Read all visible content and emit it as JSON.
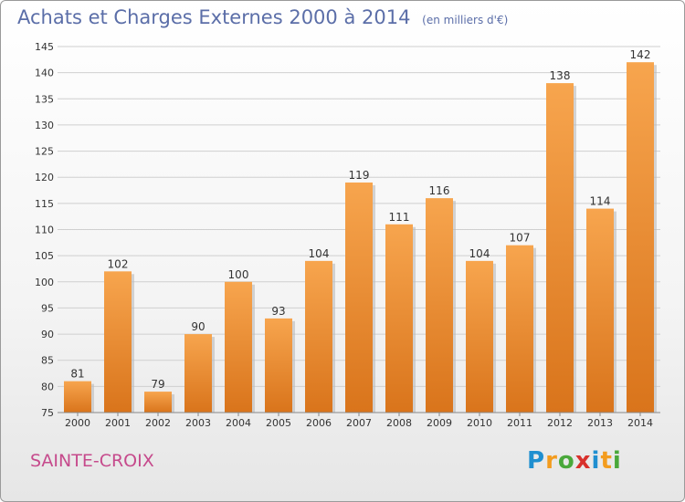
{
  "title": "Achats et Charges Externes 2000 à 2014",
  "subtitle": "(en milliers d'€)",
  "commune": "SAINTE-CROIX",
  "logo": {
    "text": "Proxiti",
    "letters": [
      {
        "char": "P",
        "color": "#1f8fd0"
      },
      {
        "char": "r",
        "color": "#f39c1e"
      },
      {
        "char": "o",
        "color": "#4aa83b"
      },
      {
        "char": "x",
        "color": "#d8312c"
      },
      {
        "char": "i",
        "color": "#1f8fd0"
      },
      {
        "char": "t",
        "color": "#f39c1e"
      },
      {
        "char": "i",
        "color": "#4aa83b"
      }
    ]
  },
  "colors": {
    "title": "#5b6ea8",
    "commune": "#c64a8c",
    "bar_light": "#f7a54e",
    "bar_dark": "#d9741b",
    "grid": "#cfcfcf",
    "axis_text": "#333333"
  },
  "chart_data": {
    "type": "bar",
    "categories": [
      "2000",
      "2001",
      "2002",
      "2003",
      "2004",
      "2005",
      "2006",
      "2007",
      "2008",
      "2009",
      "2010",
      "2011",
      "2012",
      "2013",
      "2014"
    ],
    "values": [
      81,
      102,
      79,
      90,
      100,
      93,
      104,
      119,
      111,
      116,
      104,
      107,
      138,
      114,
      142
    ],
    "ylim": [
      75,
      145
    ],
    "yticks": [
      75,
      80,
      85,
      90,
      95,
      100,
      105,
      110,
      115,
      120,
      125,
      130,
      135,
      140,
      145
    ],
    "grid": true,
    "data_labels": true
  }
}
